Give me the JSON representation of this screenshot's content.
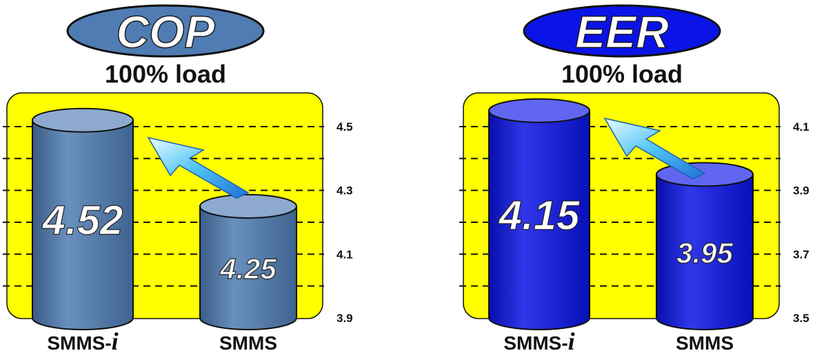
{
  "chart_data": [
    {
      "type": "bar",
      "title": "COP",
      "subtitle": "100% load",
      "categories": [
        {
          "main": "SMMS-",
          "suffix": "i"
        },
        {
          "main": "SMMS",
          "suffix": ""
        }
      ],
      "values": [
        4.52,
        4.25
      ],
      "value_labels": [
        "4.52",
        "4.25"
      ],
      "ylim": [
        3.9,
        4.5
      ],
      "yticks": [
        3.9,
        4.1,
        4.3,
        4.5
      ],
      "ytick_labels": [
        "3.9",
        "4.1",
        "4.3",
        "4.5"
      ],
      "color": "#4f7cb3",
      "title_color": "#4f7cb3",
      "background": "#ffff00",
      "grid": true
    },
    {
      "type": "bar",
      "title": "EER",
      "subtitle": "100% load",
      "categories": [
        {
          "main": "SMMS-",
          "suffix": "i"
        },
        {
          "main": "SMMS",
          "suffix": ""
        }
      ],
      "values": [
        4.15,
        3.95
      ],
      "value_labels": [
        "4.15",
        "3.95"
      ],
      "ylim": [
        3.5,
        4.1
      ],
      "yticks": [
        3.5,
        3.7,
        3.9,
        4.1
      ],
      "ytick_labels": [
        "3.5",
        "3.7",
        "3.9",
        "4.1"
      ],
      "color": "#0a14e6",
      "title_color": "#0a14e6",
      "background": "#ffff00",
      "grid": true
    }
  ]
}
